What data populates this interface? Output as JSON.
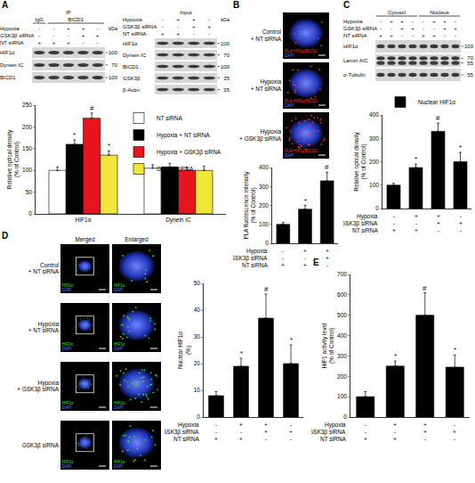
{
  "panels": {
    "A": {
      "letter": "A",
      "ip_blot": {
        "header": "IP",
        "groups": [
          {
            "label": "IgG",
            "lanes": 1
          },
          {
            "label": "BICD1",
            "lanes": 4
          }
        ],
        "conditions": [
          {
            "label": "Hypoxia",
            "signs": [
              "-",
              "-",
              "+",
              "+",
              "-"
            ]
          },
          {
            "label": "GSK3β siRNA",
            "signs": [
              "-",
              "-",
              "-",
              "+",
              "+"
            ]
          },
          {
            "label": "NT siRNA",
            "signs": [
              "+",
              "+",
              "+",
              "-",
              "-"
            ]
          }
        ],
        "kda_label": "kDa",
        "rows": [
          {
            "label": "HIF1α",
            "kda": [
              "100"
            ]
          },
          {
            "label": "Dynein IC",
            "kda": [
              "70"
            ]
          },
          {
            "label": "BICD1",
            "kda": [
              "100"
            ]
          }
        ]
      },
      "input_blot": {
        "header": "Input",
        "conditions": [
          {
            "label": "Hypoxia",
            "signs": [
              "-",
              "+",
              "+",
              "-"
            ]
          },
          {
            "label": "GSK3β siRNA",
            "signs": [
              "-",
              "-",
              "+",
              "+"
            ]
          },
          {
            "label": "NT siRNA",
            "signs": [
              "+",
              "+",
              "-",
              "-"
            ]
          }
        ],
        "kda_label": "kDa",
        "rows": [
          {
            "label": "HIF1α",
            "kda": [
              "100"
            ]
          },
          {
            "label": "Dynein IC",
            "kda": [
              "70"
            ]
          },
          {
            "label": "BICD1",
            "kda": [
              "100"
            ]
          },
          {
            "label": "GSK3β",
            "kda": [
              "35"
            ]
          },
          {
            "label": "β-Actin",
            "kda": [
              "35"
            ]
          }
        ]
      }
    },
    "B": {
      "letter": "B",
      "images": [
        "Control + NT siRNA",
        "Hypoxia + NT siRNA",
        "Hypoxia + GSK3β siRNA"
      ],
      "stains": [
        {
          "text": "PLA-HIF1α/BICD1",
          "color": "#ff3030"
        },
        {
          "text": "DAPI",
          "color": "#5a78ff"
        }
      ]
    },
    "C": {
      "letter": "C",
      "blot": {
        "groups": [
          {
            "label": "Cytosol",
            "lanes": 4
          },
          {
            "label": "Nucleus",
            "lanes": 4
          }
        ],
        "conditions": [
          {
            "label": "Hypoxia",
            "signs": [
              "-",
              "+",
              "+",
              "-",
              "-",
              "+",
              "+",
              "-"
            ]
          },
          {
            "label": "GSK3β siRNA",
            "signs": [
              "-",
              "-",
              "+",
              "+",
              "-",
              "-",
              "+",
              "+"
            ]
          },
          {
            "label": "NT siRNA",
            "signs": [
              "+",
              "+",
              "-",
              "-",
              "+",
              "+",
              "-",
              "-"
            ]
          }
        ],
        "rows": [
          {
            "label": "HIF1α",
            "kda": [
              "100"
            ]
          },
          {
            "label": "Lamin A/C",
            "kda": [
              "70",
              "55"
            ]
          },
          {
            "label": "α-Tubulin",
            "kda": [
              "55"
            ]
          }
        ]
      }
    },
    "D": {
      "letter": "D",
      "columns": [
        "Merged",
        "Enlarged"
      ],
      "images": [
        "Control + NT siRNA",
        "Hypoxia + NT siRNA",
        "Hypoxia + GSK3β siRNA",
        "GSK3β siRNA"
      ],
      "stains": [
        {
          "text": "HIF1α",
          "color": "#30e030"
        },
        {
          "text": "DAPI",
          "color": "#5a78ff"
        }
      ]
    },
    "E": {
      "letter": "E"
    }
  },
  "chart_data": [
    {
      "type": "bar",
      "categories": [
        "HIF1α",
        "Dynein IC"
      ],
      "ylabel": "Relative optical density (% of Control)",
      "ylim": [
        0,
        250
      ],
      "yticks": [
        0,
        50,
        100,
        150,
        200,
        250
      ],
      "grid": false,
      "legend": "top right",
      "series": [
        {
          "name": "NT siRNA",
          "color": "#ffffff",
          "values": [
            100,
            105
          ],
          "errors": [
            8,
            8
          ],
          "significance": [
            null,
            null
          ]
        },
        {
          "name": "Hypoxia + NT siRNA",
          "color": "#000000",
          "values": [
            160,
            108
          ],
          "errors": [
            10,
            8
          ],
          "significance": [
            "*",
            null
          ]
        },
        {
          "name": "Hypoxia + GSK3β siRNA",
          "color": "#e8141c",
          "values": [
            220,
            100
          ],
          "errors": [
            12,
            8
          ],
          "significance": [
            "#",
            null
          ]
        },
        {
          "name": "GSK3β siRNA",
          "color": "#f2e53a",
          "values": [
            135,
            100
          ],
          "errors": [
            10,
            10
          ],
          "significance": [
            "*",
            null
          ]
        }
      ]
    },
    {
      "type": "bar",
      "categories": [
        null,
        null,
        null
      ],
      "ylabel": "PLA fluorescence intensity (% of Control)",
      "ylim": [
        0,
        400
      ],
      "yticks": [
        0,
        100,
        200,
        300,
        400
      ],
      "grid": false,
      "color": "#000000",
      "values": [
        100,
        180,
        330
      ],
      "errors": [
        10,
        20,
        45
      ],
      "significance": [
        null,
        "*",
        "#"
      ],
      "conditions": [
        {
          "label": "Hypoxia",
          "signs": [
            "-",
            "+",
            "+"
          ]
        },
        {
          "label": "GSK3β siRNA",
          "signs": [
            "-",
            "-",
            "+"
          ]
        },
        {
          "label": "NT siRNA",
          "signs": [
            "+",
            "+",
            "-"
          ]
        }
      ]
    },
    {
      "type": "bar",
      "categories": [
        null,
        null,
        null,
        null
      ],
      "ylabel": "Relative optical density (% of Control)",
      "ylim": [
        0,
        400
      ],
      "yticks": [
        0,
        100,
        200,
        300,
        400
      ],
      "grid": false,
      "legend": "top left",
      "series": [
        {
          "name": "Nuclear HIF1α",
          "color": "#000000",
          "values": [
            100,
            175,
            330,
            200
          ],
          "errors": [
            8,
            15,
            35,
            40
          ],
          "significance": [
            null,
            "*",
            "#",
            "*"
          ]
        }
      ],
      "conditions": [
        {
          "label": "Hypoxia",
          "signs": [
            "-",
            "+",
            "+",
            "-"
          ]
        },
        {
          "label": "GSK3β siRNA",
          "signs": [
            "-",
            "-",
            "+",
            "+"
          ]
        },
        {
          "label": "NT siRNA",
          "signs": [
            "+",
            "+",
            "-",
            "-"
          ]
        }
      ]
    },
    {
      "type": "bar",
      "categories": [
        null,
        null,
        null,
        null
      ],
      "ylabel": "Nuclear HIF1α (%)",
      "ylim": [
        0,
        50
      ],
      "yticks": [
        0,
        10,
        20,
        30,
        40,
        50
      ],
      "grid": false,
      "color": "#000000",
      "values": [
        8,
        19,
        37,
        20
      ],
      "errors": [
        1.5,
        3,
        9,
        7
      ],
      "significance": [
        null,
        "*",
        "#",
        "*"
      ],
      "conditions": [
        {
          "label": "Hypoxia",
          "signs": [
            "-",
            "+",
            "+",
            "-"
          ]
        },
        {
          "label": "GSK3β siRNA",
          "signs": [
            "-",
            "-",
            "+",
            "+"
          ]
        },
        {
          "label": "NT siRNA",
          "signs": [
            "+",
            "+",
            "-",
            "-"
          ]
        }
      ]
    },
    {
      "type": "bar",
      "categories": [
        null,
        null,
        null,
        null
      ],
      "ylabel": "HIF1 activity level (% of Control)",
      "ylim": [
        0,
        700
      ],
      "yticks": [
        0,
        100,
        200,
        300,
        400,
        500,
        600,
        700
      ],
      "grid": false,
      "color": "#000000",
      "values": [
        100,
        250,
        500,
        245
      ],
      "errors": [
        25,
        25,
        110,
        60
      ],
      "significance": [
        null,
        "*",
        "#",
        "*"
      ],
      "conditions": [
        {
          "label": "Hypoxia",
          "signs": [
            "-",
            "+",
            "+",
            "-"
          ]
        },
        {
          "label": "GSK3β siRNA",
          "signs": [
            "-",
            "-",
            "+",
            "+"
          ]
        },
        {
          "label": "NT siRNA",
          "signs": [
            "+",
            "+",
            "-",
            "-"
          ]
        }
      ]
    }
  ]
}
